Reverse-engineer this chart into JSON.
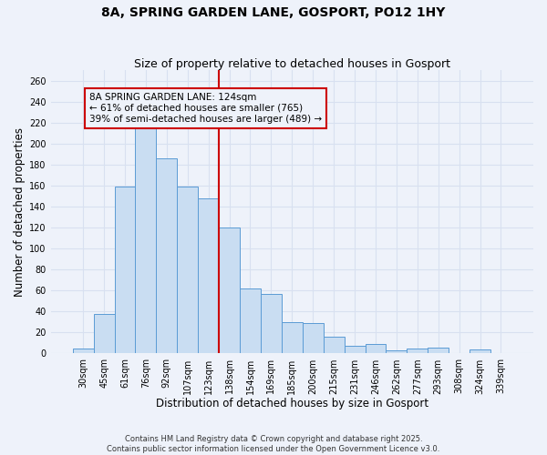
{
  "title": "8A, SPRING GARDEN LANE, GOSPORT, PO12 1HY",
  "subtitle": "Size of property relative to detached houses in Gosport",
  "xlabel": "Distribution of detached houses by size in Gosport",
  "ylabel": "Number of detached properties",
  "bar_labels": [
    "30sqm",
    "45sqm",
    "61sqm",
    "76sqm",
    "92sqm",
    "107sqm",
    "123sqm",
    "138sqm",
    "154sqm",
    "169sqm",
    "185sqm",
    "200sqm",
    "215sqm",
    "231sqm",
    "246sqm",
    "262sqm",
    "277sqm",
    "293sqm",
    "308sqm",
    "324sqm",
    "339sqm"
  ],
  "bar_heights": [
    5,
    38,
    159,
    218,
    186,
    159,
    148,
    120,
    62,
    57,
    30,
    29,
    16,
    7,
    9,
    3,
    5,
    6,
    0,
    4,
    0
  ],
  "bar_color": "#c9ddf2",
  "bar_edge_color": "#5b9bd5",
  "vline_color": "#cc0000",
  "vline_label_line1": "8A SPRING GARDEN LANE: 124sqm",
  "vline_label_line2": "← 61% of detached houses are smaller (765)",
  "vline_label_line3": "39% of semi-detached houses are larger (489) →",
  "box_edge_color": "#cc0000",
  "ylim": [
    0,
    270
  ],
  "yticks": [
    0,
    20,
    40,
    60,
    80,
    100,
    120,
    140,
    160,
    180,
    200,
    220,
    240,
    260
  ],
  "footnote1": "Contains HM Land Registry data © Crown copyright and database right 2025.",
  "footnote2": "Contains public sector information licensed under the Open Government Licence v3.0.",
  "background_color": "#eef2fa",
  "grid_color": "#d8e0f0",
  "title_fontsize": 10,
  "subtitle_fontsize": 9,
  "axis_label_fontsize": 8.5,
  "tick_fontsize": 7,
  "annotation_fontsize": 7.5,
  "footnote_fontsize": 6
}
